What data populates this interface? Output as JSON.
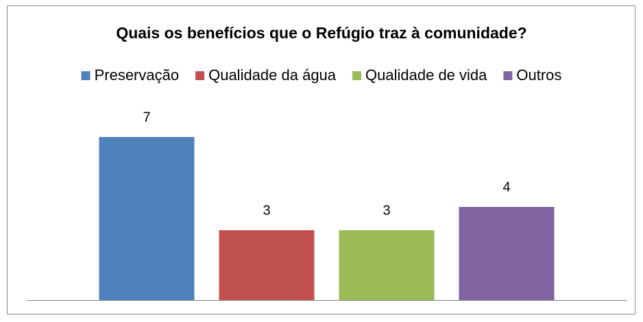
{
  "chart_data": {
    "type": "bar",
    "title": "Quais os benefícios que o Refúgio traz à comunidade?",
    "series": [
      {
        "name": "Preservação",
        "color": "#4f81bd",
        "values": [
          7
        ]
      },
      {
        "name": "Qualidade da água",
        "color": "#c0504d",
        "values": [
          3
        ]
      },
      {
        "name": "Qualidade de vida",
        "color": "#9bbb59",
        "values": [
          3
        ]
      },
      {
        "name": "Outros",
        "color": "#8064a2",
        "values": [
          4
        ]
      }
    ],
    "ylim": [
      0,
      8
    ],
    "legend": "top",
    "grid": false
  }
}
